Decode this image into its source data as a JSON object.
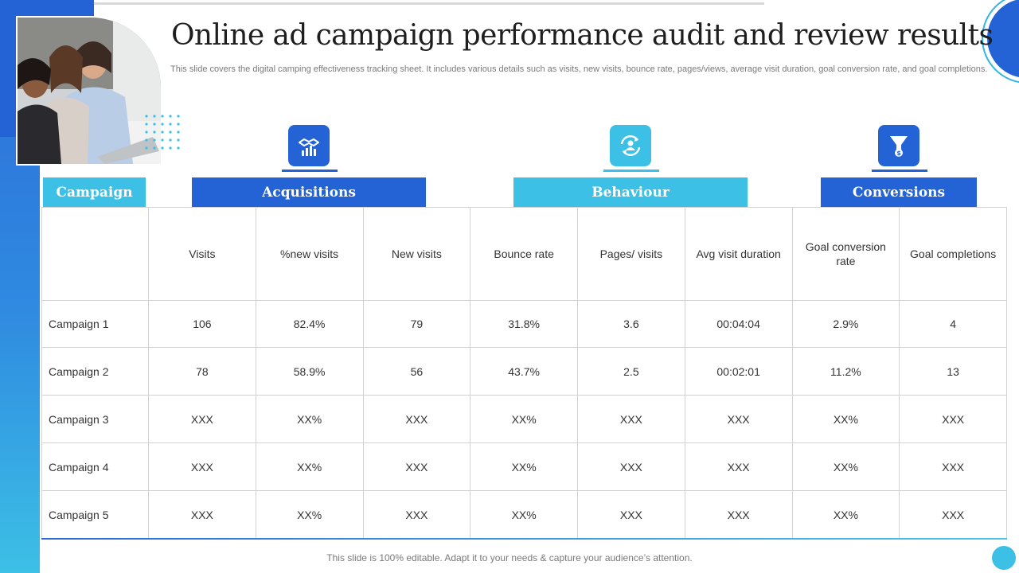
{
  "title": "Online ad campaign performance audit and review results",
  "subtitle": "This slide covers the digital camping effectiveness tracking sheet. It includes various details such as visits, new visits, bounce rate, pages/views, average visit duration, goal conversion rate, and goal completions.",
  "groups": {
    "campaign": "Campaign",
    "acquisitions": "Acquisitions",
    "behaviour": "Behaviour",
    "conversions": "Conversions"
  },
  "icons": {
    "acquisitions": "handshake-chart-icon",
    "behaviour": "refresh-user-icon",
    "conversions": "funnel-dollar-icon"
  },
  "colors": {
    "dark_blue": "#2363d6",
    "light_blue": "#3cc0e6"
  },
  "table": {
    "columns": [
      "",
      "Visits",
      "%new visits",
      "New visits",
      "Bounce rate",
      "Pages/ visits",
      "Avg visit duration",
      "Goal conversion rate",
      "Goal completions"
    ],
    "rows": [
      [
        "Campaign 1",
        "106",
        "82.4%",
        "79",
        "31.8%",
        "3.6",
        "00:04:04",
        "2.9%",
        "4"
      ],
      [
        "Campaign 2",
        "78",
        "58.9%",
        "56",
        "43.7%",
        "2.5",
        "00:02:01",
        "11.2%",
        "13"
      ],
      [
        "Campaign 3",
        "XXX",
        "XX%",
        "XXX",
        "XX%",
        "XXX",
        "XXX",
        "XX%",
        "XXX"
      ],
      [
        "Campaign 4",
        "XXX",
        "XX%",
        "XXX",
        "XX%",
        "XXX",
        "XXX",
        "XX%",
        "XXX"
      ],
      [
        "Campaign 5",
        "XXX",
        "XX%",
        "XXX",
        "XX%",
        "XXX",
        "XXX",
        "XX%",
        "XXX"
      ]
    ]
  },
  "footer": "This slide is 100% editable. Adapt it to your needs & capture your audience’s attention."
}
